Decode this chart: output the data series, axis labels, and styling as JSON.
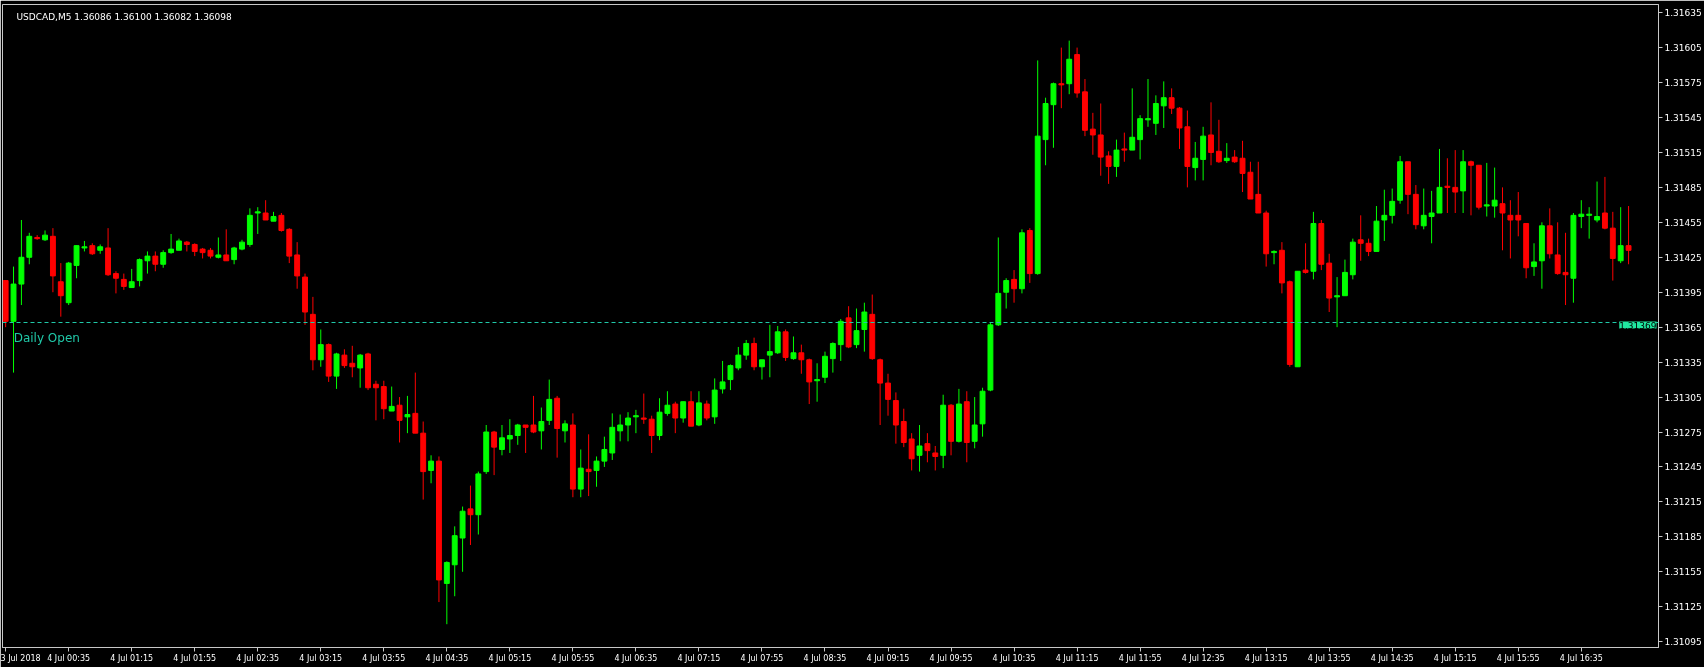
{
  "chart_data": {
    "type": "candlestick",
    "title": "USDCAD,M5  1.36086 1.36100 1.36082 1.36098",
    "x": [
      "2018-07-03T23:55",
      "2018-07-04T00:00",
      "2018-07-04T00:05",
      "2018-07-04T00:10",
      "2018-07-04T00:15",
      "2018-07-04T00:20",
      "2018-07-04T00:25",
      "2018-07-04T00:30",
      "2018-07-04T00:35",
      "2018-07-04T00:40",
      "2018-07-04T00:45",
      "2018-07-04T00:50",
      "2018-07-04T00:55",
      "2018-07-04T01:00",
      "2018-07-04T01:05",
      "2018-07-04T01:10",
      "2018-07-04T01:15",
      "2018-07-04T01:20",
      "2018-07-04T01:25",
      "2018-07-04T01:30",
      "2018-07-04T01:35",
      "2018-07-04T01:40",
      "2018-07-04T01:45",
      "2018-07-04T01:50",
      "2018-07-04T01:55",
      "2018-07-04T02:00",
      "2018-07-04T02:05",
      "2018-07-04T02:10",
      "2018-07-04T02:15",
      "2018-07-04T02:20",
      "2018-07-04T02:25",
      "2018-07-04T02:30",
      "2018-07-04T02:35",
      "2018-07-04T02:40",
      "2018-07-04T02:45",
      "2018-07-04T02:50",
      "2018-07-04T02:55",
      "2018-07-04T03:00",
      "2018-07-04T03:05",
      "2018-07-04T03:10",
      "2018-07-04T03:15",
      "2018-07-04T03:20",
      "2018-07-04T03:25",
      "2018-07-04T03:30",
      "2018-07-04T03:35",
      "2018-07-04T03:40",
      "2018-07-04T03:45",
      "2018-07-04T03:50",
      "2018-07-04T03:55",
      "2018-07-04T04:00",
      "2018-07-04T04:05",
      "2018-07-04T04:10",
      "2018-07-04T04:15",
      "2018-07-04T04:20",
      "2018-07-04T04:25",
      "2018-07-04T04:30",
      "2018-07-04T04:35",
      "2018-07-04T04:40",
      "2018-07-04T04:45",
      "2018-07-04T04:50",
      "2018-07-04T04:55",
      "2018-07-04T05:00",
      "2018-07-04T05:05",
      "2018-07-04T05:10",
      "2018-07-04T05:15",
      "2018-07-04T05:20",
      "2018-07-04T05:25",
      "2018-07-04T05:30",
      "2018-07-04T05:35",
      "2018-07-04T05:40",
      "2018-07-04T05:45",
      "2018-07-04T05:50",
      "2018-07-04T05:55",
      "2018-07-04T06:00",
      "2018-07-04T06:05",
      "2018-07-04T06:10",
      "2018-07-04T06:15",
      "2018-07-04T06:20",
      "2018-07-04T06:25",
      "2018-07-04T06:30",
      "2018-07-04T06:35",
      "2018-07-04T06:40",
      "2018-07-04T06:45",
      "2018-07-04T06:50",
      "2018-07-04T06:55",
      "2018-07-04T07:00",
      "2018-07-04T07:05",
      "2018-07-04T07:10",
      "2018-07-04T07:15",
      "2018-07-04T07:20",
      "2018-07-04T07:25",
      "2018-07-04T07:30",
      "2018-07-04T07:35",
      "2018-07-04T07:40",
      "2018-07-04T07:45",
      "2018-07-04T07:50",
      "2018-07-04T07:55",
      "2018-07-04T08:00",
      "2018-07-04T08:05",
      "2018-07-04T08:10",
      "2018-07-04T08:15",
      "2018-07-04T08:20",
      "2018-07-04T08:25",
      "2018-07-04T08:30",
      "2018-07-04T08:35",
      "2018-07-04T08:40",
      "2018-07-04T08:45",
      "2018-07-04T08:50",
      "2018-07-04T08:55",
      "2018-07-04T09:00",
      "2018-07-04T09:05",
      "2018-07-04T09:10",
      "2018-07-04T09:15",
      "2018-07-04T09:20",
      "2018-07-04T09:25",
      "2018-07-04T09:30",
      "2018-07-04T09:35",
      "2018-07-04T09:40",
      "2018-07-04T09:45",
      "2018-07-04T09:50",
      "2018-07-04T09:55",
      "2018-07-04T10:00",
      "2018-07-04T10:05",
      "2018-07-04T10:10",
      "2018-07-04T10:15",
      "2018-07-04T10:20",
      "2018-07-04T10:25",
      "2018-07-04T10:30",
      "2018-07-04T10:35",
      "2018-07-04T10:40",
      "2018-07-04T10:45",
      "2018-07-04T10:50",
      "2018-07-04T10:55",
      "2018-07-04T11:00",
      "2018-07-04T11:05",
      "2018-07-04T11:10",
      "2018-07-04T11:15",
      "2018-07-04T11:20",
      "2018-07-04T11:25",
      "2018-07-04T11:30",
      "2018-07-04T11:35",
      "2018-07-04T11:40",
      "2018-07-04T11:45",
      "2018-07-04T11:50",
      "2018-07-04T11:55",
      "2018-07-04T12:00",
      "2018-07-04T12:05",
      "2018-07-04T12:10",
      "2018-07-04T12:15",
      "2018-07-04T12:20",
      "2018-07-04T12:25",
      "2018-07-04T12:30",
      "2018-07-04T12:35",
      "2018-07-04T12:40",
      "2018-07-04T12:45",
      "2018-07-04T12:50",
      "2018-07-04T12:55",
      "2018-07-04T13:00",
      "2018-07-04T13:05",
      "2018-07-04T13:10",
      "2018-07-04T13:15",
      "2018-07-04T13:20",
      "2018-07-04T13:25",
      "2018-07-04T13:30",
      "2018-07-04T13:35",
      "2018-07-04T13:40",
      "2018-07-04T13:45",
      "2018-07-04T13:50",
      "2018-07-04T13:55",
      "2018-07-04T14:00",
      "2018-07-04T14:05",
      "2018-07-04T14:10",
      "2018-07-04T14:15",
      "2018-07-04T14:20",
      "2018-07-04T14:25",
      "2018-07-04T14:30",
      "2018-07-04T14:35",
      "2018-07-04T14:40",
      "2018-07-04T14:45",
      "2018-07-04T14:50",
      "2018-07-04T14:55",
      "2018-07-04T15:00",
      "2018-07-04T15:05",
      "2018-07-04T15:10",
      "2018-07-04T15:15",
      "2018-07-04T15:20",
      "2018-07-04T15:25",
      "2018-07-04T15:30",
      "2018-07-04T15:35",
      "2018-07-04T15:40",
      "2018-07-04T15:45",
      "2018-07-04T15:50",
      "2018-07-04T15:55",
      "2018-07-04T16:00",
      "2018-07-04T16:05",
      "2018-07-04T16:10",
      "2018-07-04T16:15",
      "2018-07-04T16:20",
      "2018-07-04T16:25",
      "2018-07-04T16:30",
      "2018-07-04T16:35",
      "2018-07-04T16:40",
      "2018-07-04T16:45",
      "2018-07-04T16:50",
      "2018-07-04T16:55",
      "2018-07-04T17:00",
      "2018-07-04T17:05"
    ],
    "ohlc": [
      [
        1.31405,
        1.31405,
        1.31365,
        1.3137
      ],
      [
        1.3137,
        1.31417,
        1.31326,
        1.31402
      ],
      [
        1.31402,
        1.31457,
        1.31384,
        1.31425
      ],
      [
        1.31425,
        1.31446,
        1.31419,
        1.31443
      ],
      [
        1.31442,
        1.31444,
        1.3144,
        1.31441
      ],
      [
        1.3144,
        1.31448,
        1.31439,
        1.31444
      ],
      [
        1.31443,
        1.3145,
        1.31395,
        1.31409
      ],
      [
        1.31404,
        1.3142,
        1.31374,
        1.31392
      ],
      [
        1.31386,
        1.31421,
        1.31384,
        1.3142
      ],
      [
        1.31418,
        1.31435,
        1.31407,
        1.31435
      ],
      [
        1.31433,
        1.31439,
        1.3143,
        1.31434
      ],
      [
        1.31435,
        1.31437,
        1.31427,
        1.31428
      ],
      [
        1.31431,
        1.31436,
        1.31428,
        1.31434
      ],
      [
        1.31433,
        1.3145,
        1.31409,
        1.3141
      ],
      [
        1.31411,
        1.31413,
        1.31394,
        1.31407
      ],
      [
        1.31406,
        1.31411,
        1.31397,
        1.314
      ],
      [
        1.31399,
        1.31415,
        1.31399,
        1.31404
      ],
      [
        1.31405,
        1.31424,
        1.314,
        1.31423
      ],
      [
        1.31422,
        1.3143,
        1.31411,
        1.31426
      ],
      [
        1.31426,
        1.3143,
        1.31413,
        1.31419
      ],
      [
        1.31419,
        1.31431,
        1.31416,
        1.31429
      ],
      [
        1.31429,
        1.31445,
        1.31428,
        1.31432
      ],
      [
        1.31431,
        1.31441,
        1.31431,
        1.31439
      ],
      [
        1.31438,
        1.31439,
        1.3143,
        1.31436
      ],
      [
        1.31436,
        1.31437,
        1.31426,
        1.3143
      ],
      [
        1.31432,
        1.31433,
        1.31424,
        1.31429
      ],
      [
        1.31431,
        1.31433,
        1.31424,
        1.31426
      ],
      [
        1.31425,
        1.31442,
        1.31424,
        1.31427
      ],
      [
        1.31427,
        1.31449,
        1.31422,
        1.31422
      ],
      [
        1.31423,
        1.31434,
        1.31419,
        1.31433
      ],
      [
        1.31432,
        1.3144,
        1.31431,
        1.31438
      ],
      [
        1.31436,
        1.31467,
        1.31434,
        1.31461
      ],
      [
        1.31463,
        1.31468,
        1.31445,
        1.31464
      ],
      [
        1.31463,
        1.31474,
        1.31457,
        1.31457
      ],
      [
        1.31456,
        1.31464,
        1.31456,
        1.3146
      ],
      [
        1.31461,
        1.31463,
        1.31447,
        1.31448
      ],
      [
        1.31449,
        1.3145,
        1.3142,
        1.31426
      ],
      [
        1.31427,
        1.31438,
        1.31398,
        1.31409
      ],
      [
        1.31408,
        1.31411,
        1.31367,
        1.31378
      ],
      [
        1.31376,
        1.31391,
        1.31328,
        1.31337
      ],
      [
        1.31337,
        1.31363,
        1.31331,
        1.3135
      ],
      [
        1.3135,
        1.31351,
        1.31318,
        1.31323
      ],
      [
        1.31323,
        1.31343,
        1.31312,
        1.31342
      ],
      [
        1.31341,
        1.31346,
        1.3133,
        1.31332
      ],
      [
        1.31334,
        1.31349,
        1.31322,
        1.31331
      ],
      [
        1.3133,
        1.31342,
        1.31313,
        1.31341
      ],
      [
        1.31342,
        1.31343,
        1.31311,
        1.31313
      ],
      [
        1.31316,
        1.31319,
        1.31285,
        1.31313
      ],
      [
        1.31314,
        1.31319,
        1.31286,
        1.31295
      ],
      [
        1.31293,
        1.31314,
        1.31293,
        1.31297
      ],
      [
        1.31298,
        1.31305,
        1.31266,
        1.31285
      ],
      [
        1.31288,
        1.31306,
        1.31274,
        1.3129
      ],
      [
        1.31291,
        1.31326,
        1.31274,
        1.31274
      ],
      [
        1.31274,
        1.31284,
        1.31217,
        1.31241
      ],
      [
        1.31242,
        1.31255,
        1.31231,
        1.3125
      ],
      [
        1.3125,
        1.31254,
        1.31129,
        1.31148
      ],
      [
        1.31145,
        1.31164,
        1.3111,
        1.31163
      ],
      [
        1.31161,
        1.31194,
        1.31134,
        1.31186
      ],
      [
        1.31184,
        1.31211,
        1.31155,
        1.31207
      ],
      [
        1.31209,
        1.31229,
        1.31178,
        1.31204
      ],
      [
        1.31204,
        1.31241,
        1.31187,
        1.31239
      ],
      [
        1.31241,
        1.31281,
        1.31239,
        1.31275
      ],
      [
        1.31275,
        1.31276,
        1.31238,
        1.31262
      ],
      [
        1.3126,
        1.31281,
        1.31255,
        1.3127
      ],
      [
        1.31269,
        1.31286,
        1.31257,
        1.31272
      ],
      [
        1.31272,
        1.31282,
        1.31264,
        1.31281
      ],
      [
        1.31281,
        1.31281,
        1.31257,
        1.31279
      ],
      [
        1.31281,
        1.31306,
        1.31274,
        1.31275
      ],
      [
        1.31276,
        1.31296,
        1.3126,
        1.31284
      ],
      [
        1.31285,
        1.3132,
        1.31281,
        1.31303
      ],
      [
        1.31304,
        1.31306,
        1.31253,
        1.31278
      ],
      [
        1.31276,
        1.31285,
        1.31266,
        1.31282
      ],
      [
        1.31281,
        1.31291,
        1.31219,
        1.31226
      ],
      [
        1.31226,
        1.3126,
        1.31219,
        1.31244
      ],
      [
        1.31243,
        1.31273,
        1.3122,
        1.31241
      ],
      [
        1.31242,
        1.31254,
        1.31228,
        1.3125
      ],
      [
        1.3125,
        1.31271,
        1.31245,
        1.3126
      ],
      [
        1.31257,
        1.31291,
        1.31251,
        1.31279
      ],
      [
        1.31276,
        1.3129,
        1.31267,
        1.31281
      ],
      [
        1.31281,
        1.31292,
        1.31267,
        1.31287
      ],
      [
        1.31288,
        1.31294,
        1.31274,
        1.31289
      ],
      [
        1.31287,
        1.31308,
        1.31282,
        1.31286
      ],
      [
        1.31286,
        1.31289,
        1.31257,
        1.31272
      ],
      [
        1.31272,
        1.31304,
        1.31268,
        1.31292
      ],
      [
        1.31291,
        1.3131,
        1.31289,
        1.31298
      ],
      [
        1.31299,
        1.31301,
        1.31274,
        1.31287
      ],
      [
        1.31287,
        1.31301,
        1.31283,
        1.31301
      ],
      [
        1.31301,
        1.3131,
        1.3128,
        1.3128
      ],
      [
        1.31281,
        1.3131,
        1.3128,
        1.313
      ],
      [
        1.31299,
        1.31302,
        1.31285,
        1.31287
      ],
      [
        1.31288,
        1.31321,
        1.31282,
        1.31311
      ],
      [
        1.31312,
        1.31336,
        1.31308,
        1.31318
      ],
      [
        1.3132,
        1.31333,
        1.31311,
        1.31332
      ],
      [
        1.3133,
        1.31348,
        1.31328,
        1.31341
      ],
      [
        1.31341,
        1.31354,
        1.31337,
        1.31351
      ],
      [
        1.31351,
        1.31356,
        1.31328,
        1.31331
      ],
      [
        1.31331,
        1.31337,
        1.3132,
        1.31337
      ],
      [
        1.31341,
        1.31367,
        1.31322,
        1.31344
      ],
      [
        1.31343,
        1.31366,
        1.31342,
        1.31361
      ],
      [
        1.31361,
        1.31363,
        1.31336,
        1.31339
      ],
      [
        1.31338,
        1.31357,
        1.31337,
        1.31343
      ],
      [
        1.31343,
        1.3135,
        1.31325,
        1.31337
      ],
      [
        1.31337,
        1.31338,
        1.31299,
        1.31318
      ],
      [
        1.31319,
        1.31334,
        1.31301,
        1.3132
      ],
      [
        1.31322,
        1.31344,
        1.31317,
        1.3134
      ],
      [
        1.31338,
        1.31352,
        1.31326,
        1.31351
      ],
      [
        1.3135,
        1.31372,
        1.31336,
        1.3137
      ],
      [
        1.31373,
        1.31383,
        1.31347,
        1.31348
      ],
      [
        1.3135,
        1.31381,
        1.31347,
        1.31362
      ],
      [
        1.31363,
        1.31386,
        1.31344,
        1.31378
      ],
      [
        1.31376,
        1.31393,
        1.31337,
        1.31338
      ],
      [
        1.31337,
        1.31338,
        1.31281,
        1.31317
      ],
      [
        1.31317,
        1.31325,
        1.31289,
        1.31303
      ],
      [
        1.31302,
        1.31309,
        1.31265,
        1.31281
      ],
      [
        1.31284,
        1.31295,
        1.31262,
        1.31266
      ],
      [
        1.31269,
        1.31274,
        1.31242,
        1.31252
      ],
      [
        1.31255,
        1.31281,
        1.31241,
        1.31263
      ],
      [
        1.31265,
        1.31274,
        1.31249,
        1.31259
      ],
      [
        1.31257,
        1.31263,
        1.31242,
        1.31254
      ],
      [
        1.31255,
        1.31307,
        1.31244,
        1.31298
      ],
      [
        1.31298,
        1.31299,
        1.31255,
        1.31267
      ],
      [
        1.31267,
        1.31312,
        1.31266,
        1.31299
      ],
      [
        1.31301,
        1.3131,
        1.31249,
        1.31266
      ],
      [
        1.31267,
        1.31305,
        1.31261,
        1.31281
      ],
      [
        1.31282,
        1.31313,
        1.31271,
        1.3131
      ],
      [
        1.31311,
        1.31369,
        1.3131,
        1.31367
      ],
      [
        1.31367,
        1.31442,
        1.31366,
        1.31394
      ],
      [
        1.31395,
        1.31407,
        1.31381,
        1.31405
      ],
      [
        1.31406,
        1.31414,
        1.31386,
        1.31398
      ],
      [
        1.31398,
        1.31449,
        1.31394,
        1.31446
      ],
      [
        1.31448,
        1.3145,
        1.31403,
        1.31411
      ],
      [
        1.31411,
        1.31594,
        1.3141,
        1.31529
      ],
      [
        1.31526,
        1.31562,
        1.31504,
        1.31557
      ],
      [
        1.31556,
        1.31575,
        1.31519,
        1.31574
      ],
      [
        1.31574,
        1.31605,
        1.31553,
        1.31573
      ],
      [
        1.31574,
        1.31611,
        1.31565,
        1.31595
      ],
      [
        1.31599,
        1.31605,
        1.31562,
        1.31566
      ],
      [
        1.31567,
        1.31578,
        1.31529,
        1.31534
      ],
      [
        1.31535,
        1.31549,
        1.31513,
        1.3153
      ],
      [
        1.3153,
        1.31557,
        1.31495,
        1.31511
      ],
      [
        1.31512,
        1.31516,
        1.31488,
        1.31503
      ],
      [
        1.31503,
        1.31526,
        1.31494,
        1.31517
      ],
      [
        1.31518,
        1.31532,
        1.31507,
        1.31517
      ],
      [
        1.31517,
        1.3157,
        1.31517,
        1.31528
      ],
      [
        1.31526,
        1.31547,
        1.31509,
        1.31544
      ],
      [
        1.31543,
        1.31578,
        1.31537,
        1.31544
      ],
      [
        1.3154,
        1.31564,
        1.3153,
        1.31557
      ],
      [
        1.31555,
        1.31576,
        1.31536,
        1.31562
      ],
      [
        1.31562,
        1.3157,
        1.31548,
        1.31553
      ],
      [
        1.31553,
        1.31554,
        1.31518,
        1.31536
      ],
      [
        1.31537,
        1.31551,
        1.31485,
        1.31503
      ],
      [
        1.31502,
        1.31524,
        1.31491,
        1.3151
      ],
      [
        1.31509,
        1.31537,
        1.31491,
        1.31529
      ],
      [
        1.3153,
        1.31558,
        1.31504,
        1.31515
      ],
      [
        1.31516,
        1.31543,
        1.31506,
        1.31507
      ],
      [
        1.31508,
        1.31523,
        1.31506,
        1.3151
      ],
      [
        1.31511,
        1.31517,
        1.31506,
        1.31507
      ],
      [
        1.3151,
        1.31525,
        1.31481,
        1.31497
      ],
      [
        1.31498,
        1.31507,
        1.31475,
        1.31475
      ],
      [
        1.31479,
        1.31507,
        1.31463,
        1.31463
      ],
      [
        1.31463,
        1.31465,
        1.31417,
        1.31428
      ],
      [
        1.31429,
        1.31431,
        1.31419,
        1.3143
      ],
      [
        1.31431,
        1.31438,
        1.31394,
        1.31403
      ],
      [
        1.31404,
        1.31405,
        1.31331,
        1.31333
      ],
      [
        1.31331,
        1.31413,
        1.31331,
        1.31413
      ],
      [
        1.31414,
        1.31437,
        1.31411,
        1.31412
      ],
      [
        1.31413,
        1.31464,
        1.31406,
        1.31454
      ],
      [
        1.31454,
        1.31457,
        1.31414,
        1.31419
      ],
      [
        1.3142,
        1.31428,
        1.31378,
        1.3139
      ],
      [
        1.31391,
        1.31408,
        1.31365,
        1.31392
      ],
      [
        1.31392,
        1.31423,
        1.31392,
        1.31412
      ],
      [
        1.3141,
        1.31441,
        1.31406,
        1.31438
      ],
      [
        1.3144,
        1.31461,
        1.31422,
        1.31437
      ],
      [
        1.31437,
        1.31441,
        1.31426,
        1.3143
      ],
      [
        1.3143,
        1.31469,
        1.3143,
        1.31456
      ],
      [
        1.31457,
        1.31483,
        1.31439,
        1.31461
      ],
      [
        1.31461,
        1.31484,
        1.31454,
        1.31473
      ],
      [
        1.31474,
        1.31512,
        1.31471,
        1.31507
      ],
      [
        1.31507,
        1.31507,
        1.31462,
        1.31479
      ],
      [
        1.31479,
        1.31487,
        1.31449,
        1.31453
      ],
      [
        1.31452,
        1.31484,
        1.31449,
        1.31461
      ],
      [
        1.3146,
        1.31482,
        1.31437,
        1.31463
      ],
      [
        1.31463,
        1.31518,
        1.31463,
        1.31485
      ],
      [
        1.31486,
        1.3151,
        1.31463,
        1.31485
      ],
      [
        1.31485,
        1.31517,
        1.31463,
        1.31481
      ],
      [
        1.31482,
        1.31517,
        1.31463,
        1.31507
      ],
      [
        1.31507,
        1.31508,
        1.31461,
        1.31504
      ],
      [
        1.31504,
        1.31504,
        1.31466,
        1.31468
      ],
      [
        1.31469,
        1.31506,
        1.3146,
        1.3147
      ],
      [
        1.31469,
        1.31502,
        1.31459,
        1.31474
      ],
      [
        1.31471,
        1.31485,
        1.31431,
        1.31463
      ],
      [
        1.31461,
        1.31474,
        1.31424,
        1.31457
      ],
      [
        1.31461,
        1.31481,
        1.31443,
        1.31457
      ],
      [
        1.31454,
        1.31454,
        1.31407,
        1.31416
      ],
      [
        1.31417,
        1.31437,
        1.31409,
        1.31421
      ],
      [
        1.31422,
        1.31455,
        1.31398,
        1.31452
      ],
      [
        1.31452,
        1.31467,
        1.31424,
        1.31428
      ],
      [
        1.31427,
        1.31455,
        1.3141,
        1.31411
      ],
      [
        1.31412,
        1.31446,
        1.31384,
        1.3141
      ],
      [
        1.31407,
        1.31463,
        1.31386,
        1.31461
      ],
      [
        1.3146,
        1.31474,
        1.3145,
        1.31462
      ],
      [
        1.31461,
        1.31468,
        1.31441,
        1.31462
      ],
      [
        1.31457,
        1.3149,
        1.31455,
        1.3146
      ],
      [
        1.31463,
        1.31494,
        1.31449,
        1.3145
      ],
      [
        1.3145,
        1.31464,
        1.31405,
        1.31424
      ],
      [
        1.31422,
        1.31468,
        1.3142,
        1.31435
      ],
      [
        1.31435,
        1.31469,
        1.31419,
        1.31431
      ]
    ],
    "colors": [
      "#ff0000",
      "#00ff00",
      "#00ff00",
      "#00ff00",
      "#ff0000",
      "#00ff00",
      "#ff0000",
      "#ff0000",
      "#00ff00",
      "#00ff00",
      "#00ff00",
      "#ff0000",
      "#00ff00",
      "#ff0000",
      "#ff0000",
      "#ff0000",
      "#00ff00",
      "#00ff00",
      "#00ff00",
      "#ff0000",
      "#00ff00",
      "#00ff00",
      "#00ff00",
      "#ff0000",
      "#ff0000",
      "#ff0000",
      "#ff0000",
      "#00ff00",
      "#ff0000",
      "#00ff00",
      "#00ff00",
      "#00ff00",
      "#00ff00",
      "#ff0000",
      "#00ff00",
      "#ff0000",
      "#ff0000",
      "#ff0000",
      "#ff0000",
      "#ff0000",
      "#00ff00",
      "#ff0000",
      "#00ff00",
      "#ff0000",
      "#ff0000",
      "#00ff00",
      "#ff0000",
      "#ff0000",
      "#ff0000",
      "#00ff00",
      "#ff0000",
      "#00ff00",
      "#ff0000",
      "#ff0000",
      "#00ff00",
      "#ff0000",
      "#00ff00",
      "#00ff00",
      "#00ff00",
      "#ff0000",
      "#00ff00",
      "#00ff00",
      "#ff0000",
      "#00ff00",
      "#00ff00",
      "#00ff00",
      "#ff0000",
      "#ff0000",
      "#00ff00",
      "#00ff00",
      "#ff0000",
      "#00ff00",
      "#ff0000",
      "#00ff00",
      "#ff0000",
      "#00ff00",
      "#00ff00",
      "#00ff00",
      "#00ff00",
      "#00ff00",
      "#00ff00",
      "#ff0000",
      "#ff0000",
      "#00ff00",
      "#00ff00",
      "#ff0000",
      "#00ff00",
      "#ff0000",
      "#00ff00",
      "#ff0000",
      "#00ff00",
      "#00ff00",
      "#00ff00",
      "#00ff00",
      "#00ff00",
      "#ff0000",
      "#00ff00",
      "#00ff00",
      "#00ff00",
      "#ff0000",
      "#00ff00",
      "#ff0000",
      "#ff0000",
      "#00ff00",
      "#00ff00",
      "#00ff00",
      "#00ff00",
      "#ff0000",
      "#00ff00",
      "#00ff00",
      "#ff0000",
      "#ff0000",
      "#ff0000",
      "#ff0000",
      "#ff0000",
      "#ff0000",
      "#00ff00",
      "#ff0000",
      "#ff0000",
      "#00ff00",
      "#ff0000",
      "#00ff00",
      "#ff0000",
      "#00ff00",
      "#00ff00",
      "#00ff00",
      "#00ff00",
      "#00ff00",
      "#ff0000",
      "#00ff00",
      "#ff0000",
      "#00ff00",
      "#00ff00",
      "#00ff00",
      "#ff0000",
      "#00ff00",
      "#ff0000",
      "#ff0000",
      "#ff0000",
      "#ff0000",
      "#ff0000",
      "#00ff00",
      "#ff0000",
      "#00ff00",
      "#00ff00",
      "#00ff00",
      "#00ff00",
      "#00ff00",
      "#ff0000",
      "#ff0000",
      "#ff0000",
      "#00ff00",
      "#00ff00",
      "#ff0000",
      "#ff0000",
      "#00ff00",
      "#ff0000",
      "#ff0000",
      "#ff0000",
      "#ff0000",
      "#ff0000",
      "#00ff00",
      "#ff0000",
      "#ff0000",
      "#00ff00",
      "#ff0000",
      "#00ff00",
      "#ff0000",
      "#ff0000",
      "#00ff00",
      "#00ff00",
      "#00ff00",
      "#ff0000",
      "#ff0000",
      "#00ff00",
      "#00ff00",
      "#00ff00",
      "#00ff00",
      "#ff0000",
      "#ff0000",
      "#00ff00",
      "#00ff00",
      "#00ff00",
      "#ff0000",
      "#ff0000",
      "#00ff00",
      "#ff0000",
      "#ff0000",
      "#00ff00",
      "#00ff00",
      "#ff0000",
      "#ff0000",
      "#ff0000",
      "#ff0000",
      "#00ff00",
      "#00ff00",
      "#ff0000",
      "#ff0000",
      "#ff0000",
      "#00ff00",
      "#00ff00",
      "#00ff00",
      "#00ff00",
      "#ff0000",
      "#ff0000",
      "#00ff00",
      "#ff0000"
    ],
    "xlim": [
      "2018-07-03T23:53",
      "2018-07-04T17:24"
    ],
    "xticks": [
      {
        "value": "2018-07-03T23:55",
        "label": null
      },
      {
        "value": "2018-07-04T00:35",
        "label": "4 Jul 00:35"
      },
      {
        "value": "2018-07-04T01:15",
        "label": "4 Jul 01:15"
      },
      {
        "value": "2018-07-04T01:55",
        "label": "4 Jul 01:55"
      },
      {
        "value": "2018-07-04T02:35",
        "label": "4 Jul 02:35"
      },
      {
        "value": "2018-07-04T03:15",
        "label": "4 Jul 03:15"
      },
      {
        "value": "2018-07-04T03:55",
        "label": "4 Jul 03:55"
      },
      {
        "value": "2018-07-04T04:35",
        "label": "4 Jul 04:35"
      },
      {
        "value": "2018-07-04T05:15",
        "label": "4 Jul 05:15"
      },
      {
        "value": "2018-07-04T05:55",
        "label": "4 Jul 05:55"
      },
      {
        "value": "2018-07-04T06:35",
        "label": "4 Jul 06:35"
      },
      {
        "value": "2018-07-04T07:15",
        "label": "4 Jul 07:15"
      },
      {
        "value": "2018-07-04T07:55",
        "label": "4 Jul 07:55"
      },
      {
        "value": "2018-07-04T08:35",
        "label": "4 Jul 08:35"
      },
      {
        "value": "2018-07-04T09:15",
        "label": "4 Jul 09:15"
      },
      {
        "value": "2018-07-04T09:55",
        "label": "4 Jul 09:55"
      },
      {
        "value": "2018-07-04T10:35",
        "label": "4 Jul 10:35"
      },
      {
        "value": "2018-07-04T11:15",
        "label": "4 Jul 11:15"
      },
      {
        "value": "2018-07-04T11:55",
        "label": "4 Jul 11:55"
      },
      {
        "value": "2018-07-04T12:35",
        "label": "4 Jul 12:35"
      },
      {
        "value": "2018-07-04T13:15",
        "label": "4 Jul 13:15"
      },
      {
        "value": "2018-07-04T13:55",
        "label": "4 Jul 13:55"
      },
      {
        "value": "2018-07-04T14:35",
        "label": "4 Jul 14:35"
      },
      {
        "value": "2018-07-04T15:15",
        "label": "4 Jul 15:15"
      },
      {
        "value": "2018-07-04T15:55",
        "label": "4 Jul 15:55"
      },
      {
        "value": "2018-07-04T16:35",
        "label": "4 Jul 16:35"
      }
    ],
    "ylim": [
      1.3109,
      1.31642
    ],
    "yticks": [
      1.31095,
      1.31125,
      1.31155,
      1.31185,
      1.31215,
      1.31245,
      1.31275,
      1.31305,
      1.31335,
      1.31365,
      1.31395,
      1.31425,
      1.31455,
      1.31485,
      1.31515,
      1.31545,
      1.31575,
      1.31605,
      1.31635
    ],
    "ref_lines": [
      {
        "axis": "y",
        "value": 1.31369,
        "label": "Daily Open",
        "color": "#20c8a8",
        "line_style": "dashed"
      }
    ],
    "annotations": [
      {
        "text": "1.31369",
        "x": "2018-07-04T17:24",
        "y": 1.31369
      },
      "3 Jul 2018"
    ]
  }
}
